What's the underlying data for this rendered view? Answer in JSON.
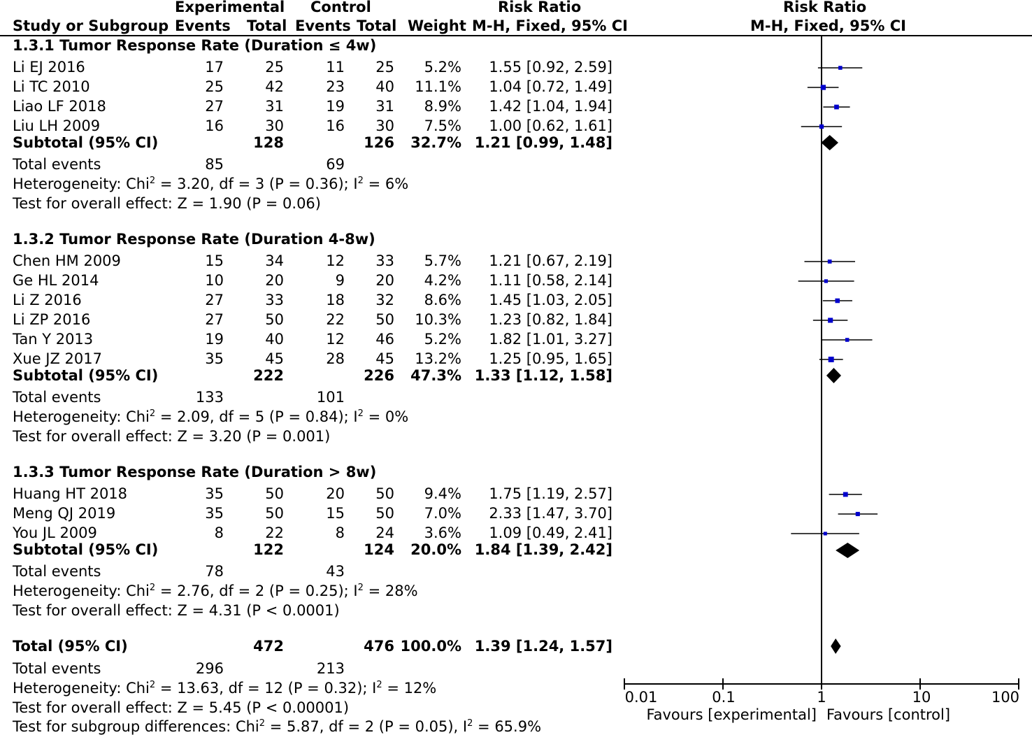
{
  "header": {
    "experimental_group": "Experimental",
    "control_group": "Control",
    "risk_ratio_left": "Risk Ratio",
    "risk_ratio_right": "Risk Ratio",
    "col_study": "Study or Subgroup",
    "col_exp_events": "Events",
    "col_exp_total": "Total",
    "col_ctl_events": "Events",
    "col_ctl_total": "Total",
    "col_weight": "Weight",
    "col_ci_left": "M-H, Fixed, 95% CI",
    "col_ci_right": "M-H, Fixed, 95% CI"
  },
  "subgroups": [
    {
      "title": "1.3.1 Tumor Response Rate (Duration ≤ 4w)",
      "studies": [
        {
          "name": "Li EJ 2016",
          "ee": "17",
          "et": "25",
          "ce": "11",
          "ct": "25",
          "w": "5.2%",
          "ci": "1.55 [0.92, 2.59]"
        },
        {
          "name": "Li TC 2010",
          "ee": "25",
          "et": "42",
          "ce": "23",
          "ct": "40",
          "w": "11.1%",
          "ci": "1.04 [0.72, 1.49]"
        },
        {
          "name": "Liao LF 2018",
          "ee": "27",
          "et": "31",
          "ce": "19",
          "ct": "31",
          "w": "8.9%",
          "ci": "1.42 [1.04, 1.94]"
        },
        {
          "name": "Liu LH 2009",
          "ee": "16",
          "et": "30",
          "ce": "16",
          "ct": "30",
          "w": "7.5%",
          "ci": "1.00 [0.62, 1.61]"
        }
      ],
      "subtotal": {
        "label": "Subtotal (95% CI)",
        "et": "128",
        "ct": "126",
        "w": "32.7%",
        "ci": "1.21 [0.99, 1.48]"
      },
      "events": {
        "label": "Total events",
        "e": "85",
        "c": "69"
      },
      "het_pre": "Heterogeneity: Chi",
      "het_mid": " = 3.20, df = 3 (P = 0.36); I",
      "het_post": " = 6%",
      "test": "Test for overall effect: Z = 1.90 (P = 0.06)"
    },
    {
      "title": "1.3.2 Tumor Response Rate (Duration 4-8w)",
      "studies": [
        {
          "name": "Chen HM 2009",
          "ee": "15",
          "et": "34",
          "ce": "12",
          "ct": "33",
          "w": "5.7%",
          "ci": "1.21 [0.67, 2.19]"
        },
        {
          "name": "Ge HL 2014",
          "ee": "10",
          "et": "20",
          "ce": "9",
          "ct": "20",
          "w": "4.2%",
          "ci": "1.11 [0.58, 2.14]"
        },
        {
          "name": "Li Z 2016",
          "ee": "27",
          "et": "33",
          "ce": "18",
          "ct": "32",
          "w": "8.6%",
          "ci": "1.45 [1.03, 2.05]"
        },
        {
          "name": "Li ZP 2016",
          "ee": "27",
          "et": "50",
          "ce": "22",
          "ct": "50",
          "w": "10.3%",
          "ci": "1.23 [0.82, 1.84]"
        },
        {
          "name": "Tan Y 2013",
          "ee": "19",
          "et": "40",
          "ce": "12",
          "ct": "46",
          "w": "5.2%",
          "ci": "1.82 [1.01, 3.27]"
        },
        {
          "name": "Xue JZ 2017",
          "ee": "35",
          "et": "45",
          "ce": "28",
          "ct": "45",
          "w": "13.2%",
          "ci": "1.25 [0.95, 1.65]"
        }
      ],
      "subtotal": {
        "label": "Subtotal (95% CI)",
        "et": "222",
        "ct": "226",
        "w": "47.3%",
        "ci": "1.33 [1.12, 1.58]"
      },
      "events": {
        "label": "Total events",
        "e": "133",
        "c": "101"
      },
      "het_pre": "Heterogeneity: Chi",
      "het_mid": " = 2.09, df = 5 (P = 0.84); I",
      "het_post": " = 0%",
      "test": "Test for overall effect: Z = 3.20 (P = 0.001)"
    },
    {
      "title": "1.3.3 Tumor Response Rate (Duration > 8w)",
      "studies": [
        {
          "name": "Huang HT 2018",
          "ee": "35",
          "et": "50",
          "ce": "20",
          "ct": "50",
          "w": "9.4%",
          "ci": "1.75 [1.19, 2.57]"
        },
        {
          "name": "Meng QJ 2019",
          "ee": "35",
          "et": "50",
          "ce": "15",
          "ct": "50",
          "w": "7.0%",
          "ci": "2.33 [1.47, 3.70]"
        },
        {
          "name": "You JL 2009",
          "ee": "8",
          "et": "22",
          "ce": "8",
          "ct": "24",
          "w": "3.6%",
          "ci": "1.09 [0.49, 2.41]"
        }
      ],
      "subtotal": {
        "label": "Subtotal (95% CI)",
        "et": "122",
        "ct": "124",
        "w": "20.0%",
        "ci": "1.84 [1.39, 2.42]"
      },
      "events": {
        "label": "Total events",
        "e": "78",
        "c": "43"
      },
      "het_pre": "Heterogeneity: Chi",
      "het_mid": " = 2.76, df = 2 (P = 0.25); I",
      "het_post": " = 28%",
      "test": "Test for overall effect: Z = 4.31 (P < 0.0001)"
    }
  ],
  "overall": {
    "label": "Total (95% CI)",
    "et": "472",
    "ct": "476",
    "w": "100.0%",
    "ci": "1.39 [1.24, 1.57]",
    "events": {
      "label": "Total events",
      "e": "296",
      "c": "213"
    },
    "het_pre": "Heterogeneity: Chi",
    "het_mid": " = 13.63, df = 12 (P = 0.32); I",
    "het_post": " = 12%",
    "test": "Test for overall effect: Z = 5.45 (P < 0.00001)",
    "subgroup_pre": "Test for subgroup differences: Chi",
    "subgroup_mid": " = 5.87, df = 2 (P = 0.05), I",
    "subgroup_post": " = 65.9%"
  },
  "superscript": "2",
  "axis": {
    "ticks": [
      "0.01",
      "0.1",
      "1",
      "10",
      "100"
    ],
    "favours_left": "Favours [experimental]",
    "favours_right": "Favours [control]"
  },
  "colors": {
    "study_marker": "#0000cc",
    "diamond": "#000000",
    "lines": "#000000"
  },
  "chart_data": {
    "type": "forest",
    "scale": "log",
    "xlim": [
      0.01,
      100
    ],
    "null_line": 1,
    "studies": [
      {
        "name": "Li EJ 2016",
        "rr": 1.55,
        "lo": 0.92,
        "hi": 2.59,
        "weight": 5.2
      },
      {
        "name": "Li TC 2010",
        "rr": 1.04,
        "lo": 0.72,
        "hi": 1.49,
        "weight": 11.1
      },
      {
        "name": "Liao LF 2018",
        "rr": 1.42,
        "lo": 1.04,
        "hi": 1.94,
        "weight": 8.9
      },
      {
        "name": "Liu LH 2009",
        "rr": 1.0,
        "lo": 0.62,
        "hi": 1.61,
        "weight": 7.5
      },
      {
        "name": "Chen HM 2009",
        "rr": 1.21,
        "lo": 0.67,
        "hi": 2.19,
        "weight": 5.7
      },
      {
        "name": "Ge HL 2014",
        "rr": 1.11,
        "lo": 0.58,
        "hi": 2.14,
        "weight": 4.2
      },
      {
        "name": "Li Z 2016",
        "rr": 1.45,
        "lo": 1.03,
        "hi": 2.05,
        "weight": 8.6
      },
      {
        "name": "Li ZP 2016",
        "rr": 1.23,
        "lo": 0.82,
        "hi": 1.84,
        "weight": 10.3
      },
      {
        "name": "Tan Y 2013",
        "rr": 1.82,
        "lo": 1.01,
        "hi": 3.27,
        "weight": 5.2
      },
      {
        "name": "Xue JZ 2017",
        "rr": 1.25,
        "lo": 0.95,
        "hi": 1.65,
        "weight": 13.2
      },
      {
        "name": "Huang HT 2018",
        "rr": 1.75,
        "lo": 1.19,
        "hi": 2.57,
        "weight": 9.4
      },
      {
        "name": "Meng QJ 2019",
        "rr": 2.33,
        "lo": 1.47,
        "hi": 3.7,
        "weight": 7.0
      },
      {
        "name": "You JL 2009",
        "rr": 1.09,
        "lo": 0.49,
        "hi": 2.41,
        "weight": 3.6
      }
    ],
    "summaries": [
      {
        "name": "Subtotal 1.3.1",
        "rr": 1.21,
        "lo": 0.99,
        "hi": 1.48
      },
      {
        "name": "Subtotal 1.3.2",
        "rr": 1.33,
        "lo": 1.12,
        "hi": 1.58
      },
      {
        "name": "Subtotal 1.3.3",
        "rr": 1.84,
        "lo": 1.39,
        "hi": 2.42
      },
      {
        "name": "Total",
        "rr": 1.39,
        "lo": 1.24,
        "hi": 1.57
      }
    ]
  }
}
